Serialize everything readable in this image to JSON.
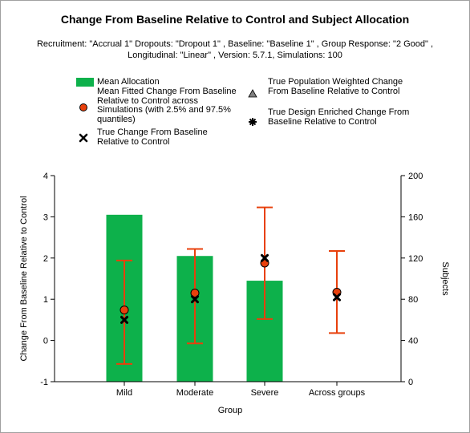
{
  "title": "Change From Baseline Relative to Control and Subject Allocation",
  "subtitle": "Recruitment: \"Accrual 1\" Dropouts: \"Dropout 1\" , Baseline: \"Baseline 1\" , Group Response: \"2 Good\" , Longitudinal: \"Linear\" , Version: 5.7.1, Simulations: 100",
  "legend": {
    "mean_allocation": "Mean Allocation",
    "mean_fitted": "Mean Fitted Change From Baseline Relative to Control  across Simulations (with 2.5% and 97.5% quantiles)",
    "true_change": "True Change From Baseline Relative to Control",
    "true_population": "True Population Weighted Change From Baseline Relative to Control",
    "true_design": "True Design Enriched Change From Baseline Relative to Control"
  },
  "colors": {
    "allocation": "#0db14b",
    "fitted_fill": "#e8400c",
    "error_bar": "#e8400c",
    "true_change": "#000000"
  },
  "chart_data": {
    "type": "bar",
    "categories": [
      "Mild",
      "Moderate",
      "Severe",
      "Across groups"
    ],
    "xlabel": "Group",
    "ylabel": "Change From Baseline Relative to Control",
    "y2label": "Subjects",
    "ylim": [
      -1,
      4
    ],
    "y2lim": [
      0,
      200
    ],
    "yticks": [
      -1,
      0,
      1,
      2,
      3,
      4
    ],
    "y2ticks": [
      0,
      40,
      80,
      120,
      160,
      200
    ],
    "grid": false,
    "legend_position": "top",
    "series": [
      {
        "name": "Mean Allocation",
        "type": "bar",
        "axis": "right",
        "values": [
          162,
          122,
          98,
          null
        ]
      },
      {
        "name": "Mean Fitted Change From Baseline Relative to Control  across Simulations (with 2.5% and 97.5% quantiles)",
        "type": "point",
        "axis": "left",
        "values": [
          0.74,
          1.15,
          1.88,
          1.17
        ],
        "lower": [
          -0.57,
          -0.07,
          0.52,
          0.18
        ],
        "upper": [
          1.94,
          2.22,
          3.23,
          2.17
        ]
      },
      {
        "name": "True Change From Baseline Relative to Control",
        "type": "point",
        "axis": "left",
        "values": [
          0.5,
          1.0,
          2.0,
          1.05
        ]
      }
    ]
  }
}
